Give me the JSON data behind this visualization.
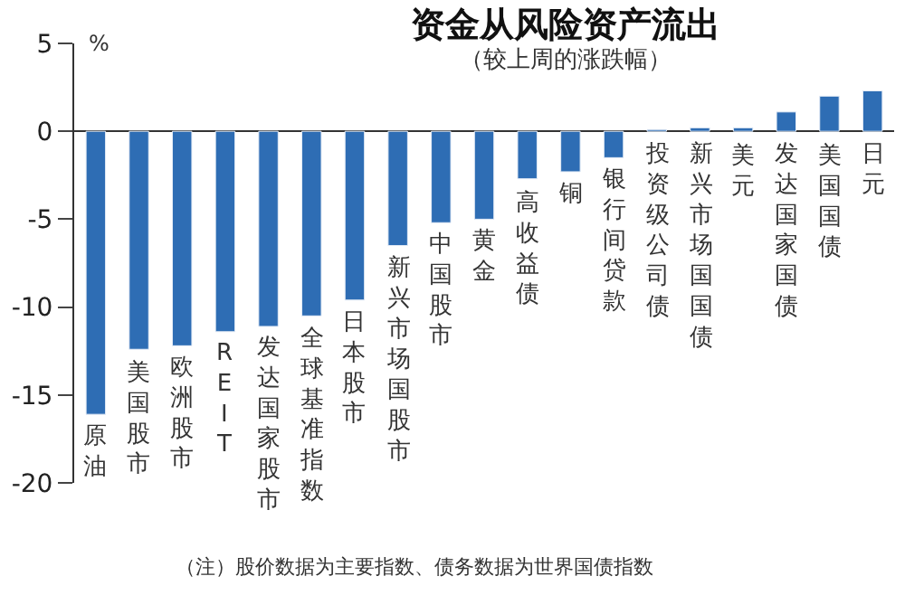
{
  "chart_data": {
    "type": "bar",
    "title": "资金从风险资产流出",
    "subtitle": "（较上周的涨跌幅）",
    "ylabel": "%",
    "categories": [
      "原油",
      "美国股市",
      "欧洲股市",
      "REIT",
      "发达国家股市",
      "全球基准指数",
      "日本股市",
      "新兴市场国股市",
      "中国股市",
      "黄金",
      "高收益债",
      "铜",
      "银行间贷款",
      "投资级公司债",
      "新兴市场国国债",
      "美元",
      "发达国家国债",
      "美国国债",
      "日元"
    ],
    "values": [
      -16.1,
      -12.4,
      -12.2,
      -11.4,
      -11.1,
      -10.5,
      -9.6,
      -6.5,
      -5.2,
      -5.0,
      -2.7,
      -2.3,
      -1.5,
      0.1,
      0.2,
      0.2,
      1.1,
      2.0,
      2.3
    ],
    "color": "#2e6db4",
    "ylim": [
      -20,
      5
    ],
    "yticks": [
      -20,
      -15,
      -10,
      -5,
      0,
      5
    ],
    "annotations": [
      "（注）股价数据为主要指数、债务数据为世界国债指数"
    ]
  }
}
